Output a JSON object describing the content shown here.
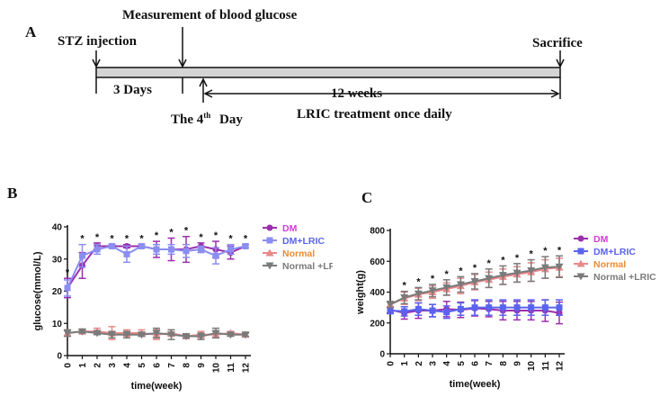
{
  "panel_a": {
    "letter": "A",
    "stz": "STZ injection",
    "measurement": "Measurement of blood glucose",
    "sacrifice": "Sacrifice",
    "days": "3 Days",
    "fourth_prefix": "The 4",
    "fourth_sup": "th",
    "fourth_suffix": "Day",
    "weeks": "12 weeks",
    "treatment": "LRIC treatment once daily"
  },
  "chart_data": [
    {
      "panel": "B",
      "type": "line",
      "xlabel": "time(week)",
      "ylabel": "glucose(mmol/L)",
      "x": [
        0,
        1,
        2,
        3,
        4,
        5,
        6,
        7,
        8,
        9,
        10,
        11,
        12
      ],
      "ylim": [
        0,
        40
      ],
      "yticks": [
        0,
        10,
        20,
        30,
        40
      ],
      "series": [
        {
          "name": "DM",
          "color": "#9b2fae",
          "legend_color": "#d63ad6",
          "marker": "circle",
          "values": [
            21,
            28,
            34,
            34,
            34,
            34,
            33,
            33,
            33,
            34,
            33,
            32,
            34
          ],
          "errors": [
            3,
            4,
            1,
            0.5,
            0.5,
            0.5,
            2.5,
            3.5,
            4,
            1,
            2.5,
            2,
            0.5
          ]
        },
        {
          "name": "DM+LRIC",
          "color": "#8b8ef0",
          "legend_color": "#5a63ee",
          "marker": "square",
          "values": [
            21,
            31,
            33,
            34,
            31.5,
            34,
            33,
            33,
            32.5,
            33,
            31,
            33,
            34
          ],
          "errors": [
            2.5,
            3.5,
            1.5,
            0.5,
            2.5,
            0.5,
            1.5,
            1.5,
            2,
            1,
            2.5,
            1.5,
            0.5
          ]
        },
        {
          "name": "Normal",
          "color": "#e8898a",
          "legend_color": "#ec8b2e",
          "marker": "triangle",
          "values": [
            7,
            7.5,
            7.5,
            7,
            7,
            7,
            6.5,
            7,
            6,
            6.5,
            6.5,
            7,
            6.5
          ],
          "errors": [
            1,
            0.5,
            1,
            2,
            1,
            1,
            1.5,
            1,
            0.5,
            1,
            1,
            0.5,
            0.5
          ]
        },
        {
          "name": "Normal +LRIC",
          "color": "#7a7a7a",
          "legend_color": "#7a7a7a",
          "marker": "triangle-down",
          "values": [
            7,
            7.5,
            7,
            6.5,
            6.5,
            6.5,
            7,
            6.5,
            6,
            6,
            7,
            6.5,
            6.5
          ],
          "errors": [
            1,
            0.5,
            0.5,
            1,
            1,
            0.5,
            1.5,
            1.5,
            0.5,
            1,
            1.5,
            0.5,
            0.5
          ]
        }
      ],
      "significance": [
        "*",
        "*",
        "*",
        "*",
        "*",
        "*",
        "*",
        "*",
        "*",
        "*",
        "*",
        "*",
        "*"
      ]
    },
    {
      "panel": "C",
      "type": "line",
      "xlabel": "time(week)",
      "ylabel": "weight(g)",
      "x": [
        0,
        1,
        2,
        3,
        4,
        5,
        6,
        7,
        8,
        9,
        10,
        11,
        12
      ],
      "ylim": [
        0,
        800
      ],
      "yticks": [
        0,
        200,
        400,
        600,
        800
      ],
      "series": [
        {
          "name": "DM",
          "color": "#9b2fae",
          "legend_color": "#d63ad6",
          "marker": "circle",
          "values": [
            285,
            265,
            280,
            280,
            290,
            285,
            295,
            290,
            280,
            280,
            280,
            280,
            265
          ],
          "errors": [
            20,
            40,
            50,
            40,
            50,
            50,
            50,
            50,
            60,
            60,
            60,
            70,
            70
          ]
        },
        {
          "name": "DM+LRIC",
          "color": "#5a63ee",
          "legend_color": "#5a63ee",
          "marker": "square",
          "values": [
            280,
            275,
            290,
            280,
            270,
            290,
            300,
            300,
            300,
            300,
            300,
            300,
            300
          ],
          "errors": [
            20,
            30,
            40,
            40,
            40,
            40,
            50,
            50,
            50,
            50,
            50,
            50,
            50
          ]
        },
        {
          "name": "Normal",
          "color": "#e8898a",
          "legend_color": "#ec8b2e",
          "marker": "triangle",
          "values": [
            320,
            360,
            385,
            400,
            420,
            440,
            465,
            480,
            500,
            515,
            530,
            550,
            560
          ],
          "errors": [
            20,
            40,
            40,
            40,
            40,
            50,
            50,
            50,
            50,
            50,
            60,
            60,
            60
          ]
        },
        {
          "name": "Normal +LRIC",
          "color": "#7a7a7a",
          "legend_color": "#7a7a7a",
          "marker": "triangle-down",
          "values": [
            320,
            365,
            390,
            410,
            430,
            450,
            470,
            490,
            510,
            525,
            540,
            560,
            565
          ],
          "errors": [
            20,
            40,
            40,
            40,
            50,
            50,
            50,
            60,
            60,
            60,
            70,
            70,
            70
          ]
        }
      ],
      "significance": [
        "",
        "*",
        "*",
        "*",
        "*",
        "*",
        "*",
        "*",
        "*",
        "*",
        "*",
        "*",
        "*"
      ]
    }
  ]
}
